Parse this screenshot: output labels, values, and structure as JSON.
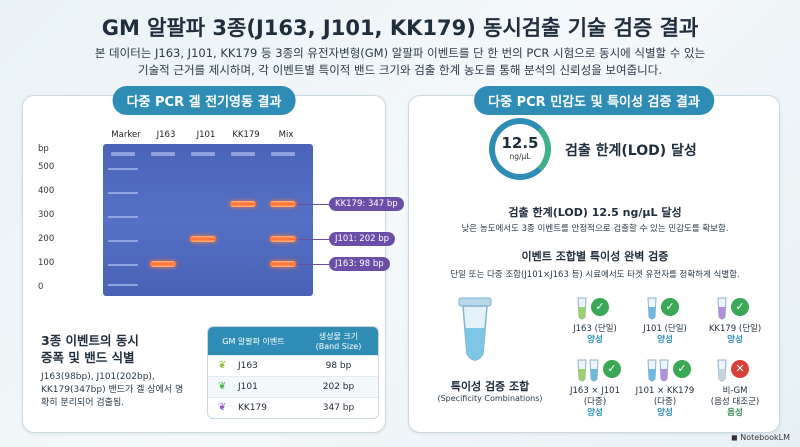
{
  "title": "GM 알팔파 3종(J163, J101, KK179) 동시검출 기술 검증 결과",
  "subtitle_lines": [
    "본 데이터는 J163, J101, KK179 등 3종의 유전자변형(GM) 알팔파 이벤트를 단 한 번의 PCR 시험으로 동시에 식별할 수 있는",
    "기술적 근거를 제시하며, 각 이벤트별 특이적 밴드 크기와 검출 한계 농도를 통해 분석의 신뢰성을 보여줍니다."
  ],
  "left_panel": {
    "heading": "다중 PCR 겔 전기영동 결과",
    "lanes": [
      "Marker",
      "J163",
      "J101",
      "KK179",
      "Mix"
    ],
    "bp_axis_label": "bp",
    "bp_ticks": [
      "500",
      "400",
      "300",
      "200",
      "100",
      "0"
    ],
    "callouts": [
      "KK179: 347 bp",
      "J101: 202 bp",
      "J163: 98 bp"
    ],
    "summary_title_lines": [
      "3종 이벤트의 동시",
      "증폭 및 밴드 식별"
    ],
    "summary_desc": "J163(98bp), J101(202bp), KK179(347bp) 밴드가 겔 상에서 명확히 분리되어 검출됨.",
    "table": {
      "col1": "GM 알팔파 이벤트",
      "col2_line1": "생성물 크기",
      "col2_line2": "(Band Size)",
      "rows": [
        {
          "event": "J163",
          "size": "98 bp",
          "leaf_color": "#8bbf3a"
        },
        {
          "event": "J101",
          "size": "202 bp",
          "leaf_color": "#4caf50"
        },
        {
          "event": "KK179",
          "size": "347 bp",
          "leaf_color": "#8e5bbf"
        }
      ]
    }
  },
  "right_panel": {
    "heading": "다중 PCR 민감도 및 특이성 검증 결과",
    "lod_value": "12.5",
    "lod_unit": "ng/μL",
    "lod_title": "검출 한계(LOD) 달성",
    "lod_heading": "검출 한계(LOD) 12.5 ng/μL 달성",
    "lod_desc": "낮은 농도에서도 3종 이벤트를 안정적으로 검출할 수 있는 민감도를 확보함.",
    "spec_heading": "이벤트 조합별 특이성 완벽 검증",
    "spec_desc": "단일 또는 다중 조합(J101×J163 등) 시료에서도 타겟 유전자를 정확하게 식별함.",
    "spec_title": "특이성 검증 조합",
    "spec_sub": "(Specificity Combinations)",
    "cells": [
      {
        "label": "J163 (단일)",
        "label2": "",
        "result": "양성",
        "ok": true
      },
      {
        "label": "J101 (단일)",
        "label2": "",
        "result": "양성",
        "ok": true
      },
      {
        "label": "KK179 (단일)",
        "label2": "",
        "result": "양성",
        "ok": true
      },
      {
        "label": "J163 × J101",
        "label2": "(다중)",
        "result": "양성",
        "ok": true
      },
      {
        "label": "J101 × KK179",
        "label2": "(다중)",
        "result": "양성",
        "ok": true
      },
      {
        "label": "비-GM",
        "label2": "(음성 대조군)",
        "result": "음성",
        "ok": false
      }
    ],
    "check_symbol": "✓",
    "cross_symbol": "✕"
  },
  "brand": "NotebookLM",
  "colors": {
    "accent": "#2f8db5",
    "band": "#ff6a2e",
    "callout": "#6a4ea8",
    "gel": "#5068bc"
  }
}
